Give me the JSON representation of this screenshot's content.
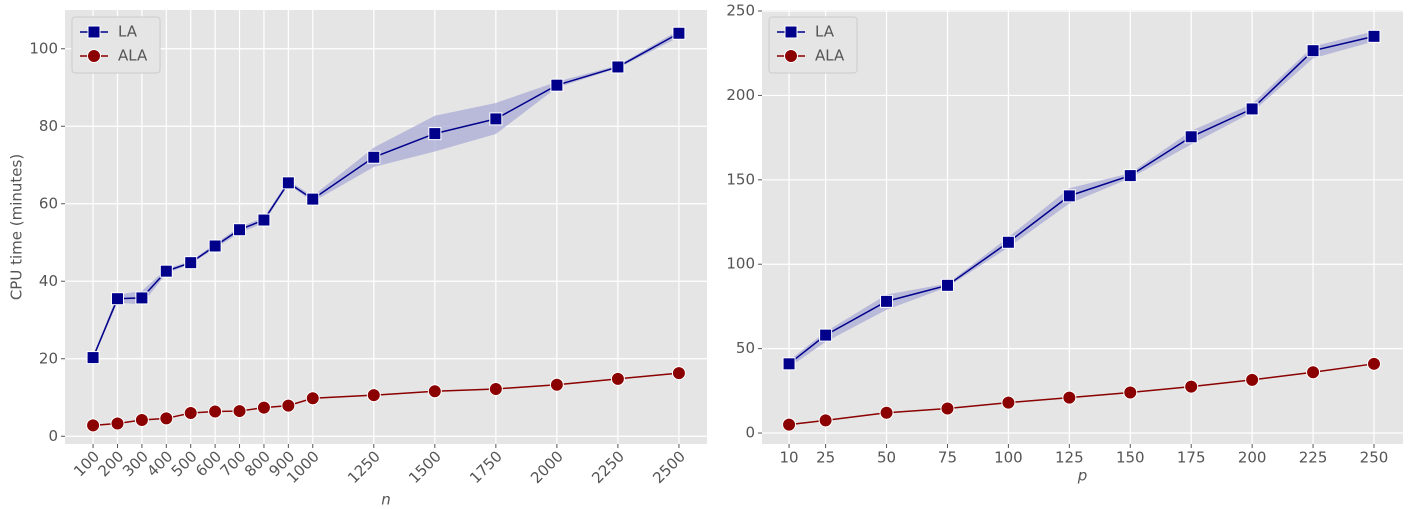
{
  "chart_data": [
    {
      "type": "line",
      "xlabel": "n",
      "ylabel": "CPU time (minutes)",
      "x": [
        100,
        200,
        300,
        400,
        500,
        600,
        700,
        800,
        900,
        1000,
        1250,
        1500,
        1750,
        2000,
        2250,
        2500
      ],
      "xlim": [
        -15,
        2615
      ],
      "xticks": [
        100,
        200,
        300,
        400,
        500,
        600,
        700,
        800,
        900,
        1000,
        1250,
        1500,
        1750,
        2000,
        2250,
        2500
      ],
      "xtick_rotation": 45,
      "ylim": [
        -2,
        110
      ],
      "yticks": [
        0,
        20,
        40,
        60,
        80,
        100
      ],
      "grid": true,
      "legend": "upper left",
      "series": [
        {
          "name": "LA",
          "color": "#00008b",
          "band_color": "#a9a9d6",
          "marker": "square",
          "values": [
            20.3,
            35.5,
            35.7,
            42.6,
            44.8,
            49.1,
            53.3,
            55.8,
            65.4,
            61.2,
            72.0,
            78.1,
            81.9,
            90.6,
            95.3,
            104.0
          ],
          "lower": [
            20.0,
            34.5,
            34.0,
            42.0,
            44.5,
            48.5,
            52.5,
            55.0,
            65.0,
            60.5,
            69.5,
            73.5,
            78.0,
            90.0,
            95.0,
            103.0
          ],
          "upper": [
            20.6,
            36.5,
            37.5,
            43.2,
            45.2,
            49.7,
            54.0,
            56.5,
            66.0,
            62.0,
            74.5,
            82.7,
            86.0,
            91.5,
            95.7,
            104.8
          ]
        },
        {
          "name": "ALA",
          "color": "#8b0000",
          "marker": "circle",
          "values": [
            2.8,
            3.3,
            4.2,
            4.6,
            6.0,
            6.4,
            6.5,
            7.4,
            7.9,
            9.8,
            10.6,
            11.6,
            12.2,
            13.3,
            14.8,
            16.3
          ]
        }
      ]
    },
    {
      "type": "line",
      "xlabel": "p",
      "x": [
        10,
        25,
        50,
        75,
        100,
        125,
        150,
        175,
        200,
        225,
        250
      ],
      "xlim": [
        -1.1,
        261.9
      ],
      "xticks": [
        10,
        25,
        50,
        75,
        100,
        125,
        150,
        175,
        200,
        225,
        250
      ],
      "ylim": [
        -6.5,
        250.6
      ],
      "yticks": [
        0,
        50,
        100,
        150,
        200,
        250
      ],
      "grid": true,
      "legend": "upper left",
      "series": [
        {
          "name": "LA",
          "color": "#00008b",
          "band_color": "#a9a9d6",
          "marker": "square",
          "values": [
            41,
            58,
            78,
            87.5,
            113,
            140.5,
            152.5,
            175.5,
            192,
            226.5,
            235
          ],
          "lower": [
            39,
            54,
            73,
            86.5,
            110,
            136,
            151,
            171,
            190,
            222,
            232
          ],
          "upper": [
            43,
            60,
            82,
            88.5,
            116,
            145,
            154,
            179,
            195,
            229,
            238
          ]
        },
        {
          "name": "ALA",
          "color": "#8b0000",
          "marker": "circle",
          "values": [
            5,
            7.5,
            12,
            14.5,
            18,
            21,
            24,
            27.5,
            31.5,
            36,
            41
          ]
        }
      ]
    }
  ]
}
